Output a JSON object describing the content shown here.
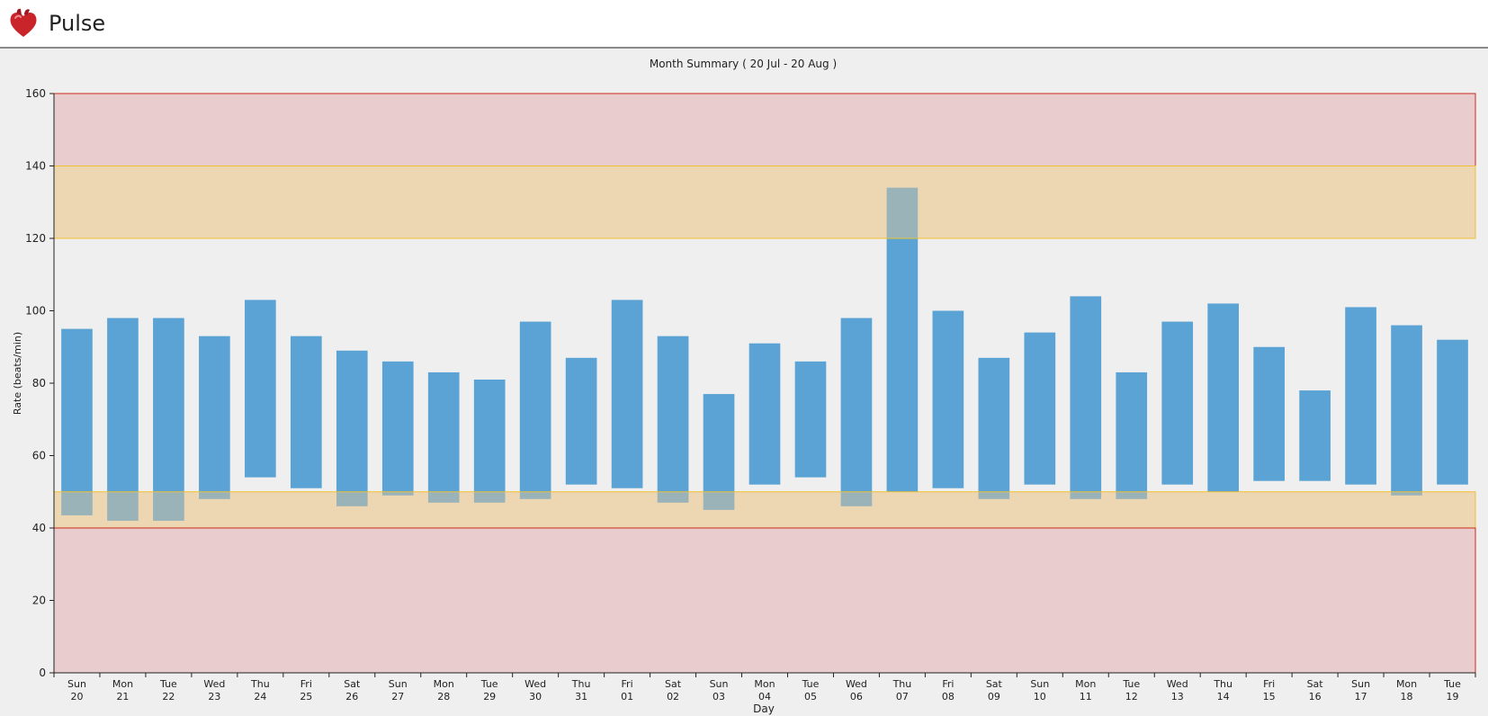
{
  "app": {
    "title": "Pulse",
    "icon": "heart-icon"
  },
  "chart_data": {
    "type": "bar",
    "title": "Month Summary ( 20 Jul - 20 Aug )",
    "xlabel": "Day",
    "ylabel": "Rate (beats/min)",
    "ylim": [
      0,
      160
    ],
    "yticks": [
      0,
      20,
      40,
      60,
      80,
      100,
      120,
      140,
      160
    ],
    "grid": false,
    "categories": [
      {
        "dow": "Sun",
        "day": "20"
      },
      {
        "dow": "Mon",
        "day": "21"
      },
      {
        "dow": "Tue",
        "day": "22"
      },
      {
        "dow": "Wed",
        "day": "23"
      },
      {
        "dow": "Thu",
        "day": "24"
      },
      {
        "dow": "Fri",
        "day": "25"
      },
      {
        "dow": "Sat",
        "day": "26"
      },
      {
        "dow": "Sun",
        "day": "27"
      },
      {
        "dow": "Mon",
        "day": "28"
      },
      {
        "dow": "Tue",
        "day": "29"
      },
      {
        "dow": "Wed",
        "day": "30"
      },
      {
        "dow": "Thu",
        "day": "31"
      },
      {
        "dow": "Fri",
        "day": "01"
      },
      {
        "dow": "Sat",
        "day": "02"
      },
      {
        "dow": "Sun",
        "day": "03"
      },
      {
        "dow": "Mon",
        "day": "04"
      },
      {
        "dow": "Tue",
        "day": "05"
      },
      {
        "dow": "Wed",
        "day": "06"
      },
      {
        "dow": "Thu",
        "day": "07"
      },
      {
        "dow": "Fri",
        "day": "08"
      },
      {
        "dow": "Sat",
        "day": "09"
      },
      {
        "dow": "Sun",
        "day": "10"
      },
      {
        "dow": "Mon",
        "day": "11"
      },
      {
        "dow": "Tue",
        "day": "12"
      },
      {
        "dow": "Wed",
        "day": "13"
      },
      {
        "dow": "Thu",
        "day": "14"
      },
      {
        "dow": "Fri",
        "day": "15"
      },
      {
        "dow": "Sat",
        "day": "16"
      },
      {
        "dow": "Sun",
        "day": "17"
      },
      {
        "dow": "Mon",
        "day": "18"
      },
      {
        "dow": "Tue",
        "day": "19"
      }
    ],
    "ranges": [
      [
        43.5,
        95
      ],
      [
        42,
        98
      ],
      [
        42,
        98
      ],
      [
        48,
        93
      ],
      [
        54,
        103
      ],
      [
        51,
        93
      ],
      [
        46,
        89
      ],
      [
        49,
        86
      ],
      [
        47,
        83
      ],
      [
        47,
        81
      ],
      [
        48,
        97
      ],
      [
        52,
        87
      ],
      [
        51,
        103
      ],
      [
        47,
        93
      ],
      [
        45,
        77
      ],
      [
        52,
        91
      ],
      [
        54,
        86
      ],
      [
        46,
        98
      ],
      [
        50,
        134
      ],
      [
        51,
        100
      ],
      [
        48,
        87
      ],
      [
        52,
        94
      ],
      [
        48,
        104
      ],
      [
        48,
        83
      ],
      [
        52,
        97
      ],
      [
        50,
        102
      ],
      [
        53,
        90
      ],
      [
        53,
        78
      ],
      [
        52,
        101
      ],
      [
        49,
        96
      ],
      [
        52,
        92
      ]
    ],
    "bands": [
      {
        "from": 140,
        "to": 160,
        "level": "danger"
      },
      {
        "from": 120,
        "to": 140,
        "level": "warning"
      },
      {
        "from": 40,
        "to": 50,
        "level": "warning"
      },
      {
        "from": 0,
        "to": 40,
        "level": "danger"
      }
    ],
    "colors": {
      "bar": "#5aa3d4",
      "bar_in_warning": "#7fa8b3",
      "danger_fill": "#e8ccce",
      "danger_line": "#cc2a1a",
      "warning_fill": "#f0e3c8",
      "warning_line": "#f0c030",
      "background": "#efefef"
    }
  }
}
